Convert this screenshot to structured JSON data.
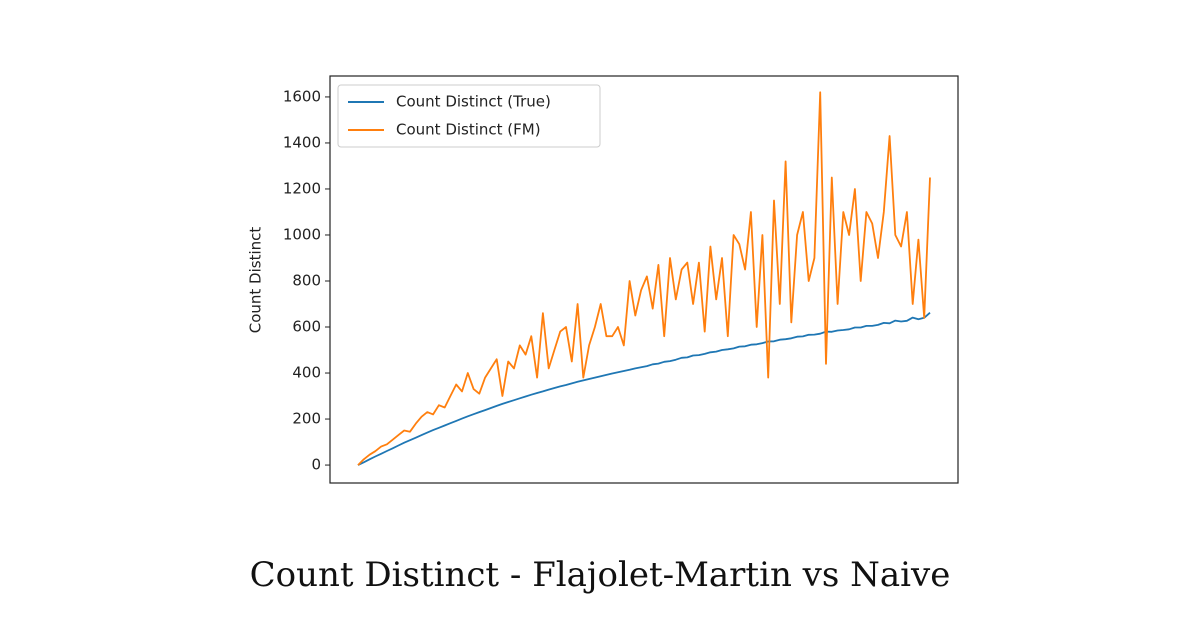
{
  "chart_data": {
    "type": "line",
    "caption": "Count Distinct - Flajolet-Martin vs Naive",
    "ylabel": "Count Distinct",
    "ylim": [
      -78,
      1691
    ],
    "yticks": [
      0,
      200,
      400,
      600,
      800,
      1000,
      1200,
      1400,
      1600
    ],
    "legend": "upper left",
    "series": [
      {
        "name": "Count Distinct (True)",
        "color": "#1f77b4",
        "values": [
          0,
          12,
          25,
          37,
          49,
          61,
          73,
          85,
          97,
          108,
          119,
          130,
          141,
          152,
          162,
          172,
          182,
          192,
          202,
          212,
          221,
          230,
          239,
          248,
          257,
          266,
          274,
          282,
          290,
          298,
          306,
          313,
          320,
          328,
          335,
          342,
          348,
          355,
          362,
          368,
          374,
          380,
          386,
          392,
          398,
          403,
          409,
          414,
          420,
          425,
          430,
          438,
          441,
          449,
          452,
          458,
          466,
          468,
          476,
          478,
          483,
          490,
          493,
          500,
          503,
          507,
          515,
          516,
          523,
          525,
          530,
          537,
          538,
          545,
          547,
          551,
          558,
          559,
          566,
          567,
          571,
          580,
          579,
          585,
          587,
          590,
          598,
          598,
          605,
          605,
          609,
          618,
          616,
          628,
          624,
          627,
          641,
          634,
          640,
          662
        ]
      },
      {
        "name": "Count Distinct (FM)",
        "color": "#ff7f0e",
        "values": [
          0,
          25,
          45,
          60,
          80,
          90,
          110,
          130,
          150,
          145,
          180,
          210,
          230,
          220,
          260,
          250,
          300,
          350,
          320,
          400,
          330,
          310,
          380,
          420,
          460,
          300,
          450,
          420,
          520,
          480,
          560,
          380,
          660,
          420,
          500,
          580,
          600,
          450,
          700,
          380,
          520,
          600,
          700,
          560,
          560,
          600,
          520,
          800,
          650,
          760,
          820,
          680,
          870,
          560,
          900,
          720,
          850,
          880,
          700,
          880,
          580,
          950,
          720,
          900,
          560,
          1000,
          960,
          850,
          1100,
          600,
          1000,
          380,
          1150,
          700,
          1320,
          620,
          1000,
          1100,
          800,
          900,
          1620,
          440,
          1250,
          700,
          1100,
          1000,
          1200,
          800,
          1100,
          1050,
          900,
          1100,
          1430,
          1000,
          950,
          1100,
          700,
          980,
          640,
          1250
        ]
      }
    ]
  }
}
